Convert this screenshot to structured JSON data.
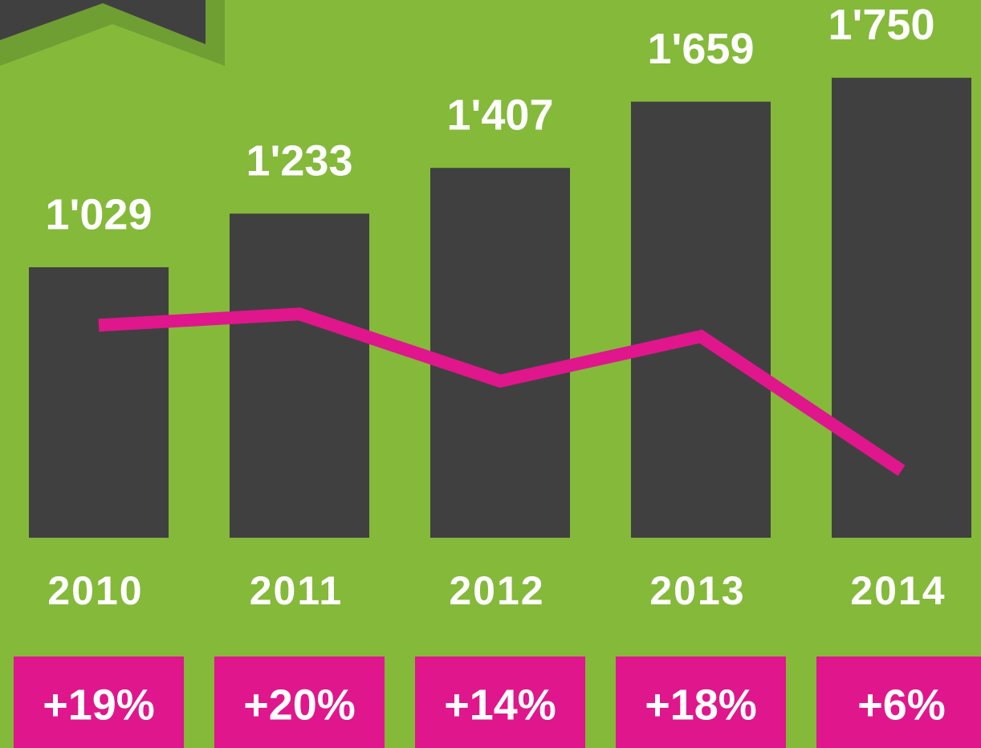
{
  "chart_data": {
    "type": "bar",
    "categories": [
      "2010",
      "2011",
      "2012",
      "2013",
      "2014"
    ],
    "series": [
      {
        "name": null,
        "color": "#404040",
        "values": [
          1029,
          1233,
          1407,
          1659,
          1750
        ],
        "value_labels": [
          "1'029",
          "1'233",
          "1'407",
          "1'659",
          "1'750"
        ]
      },
      {
        "name": null,
        "color": "#e0168c",
        "axis": "y2",
        "type": "line",
        "values": [
          19,
          20,
          14,
          18,
          6
        ],
        "value_labels": [
          "+19%",
          "+20%",
          "+14%",
          "+18%",
          "+6%"
        ]
      }
    ],
    "ylim": [
      0,
      2000
    ],
    "y2lim": [
      0,
      47
    ],
    "grid": false
  }
}
